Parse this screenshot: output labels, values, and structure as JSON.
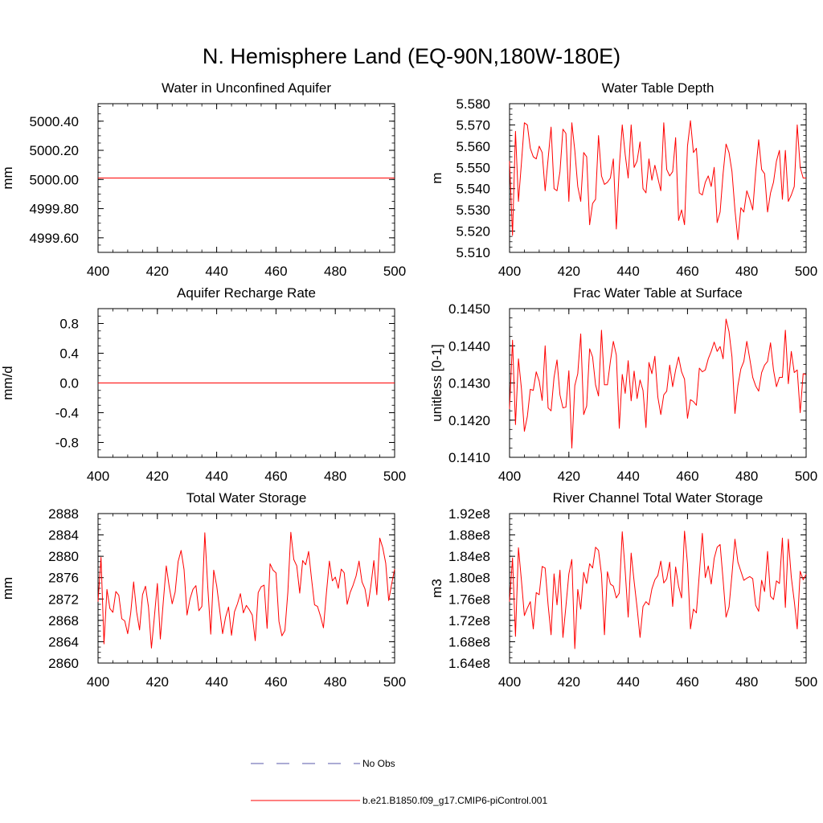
{
  "figure_title": "N. Hemisphere Land (EQ-90N,180W-180E)",
  "legend": {
    "entries": [
      {
        "label": "No Obs",
        "color": "#5a5aa8",
        "style": "dashed"
      },
      {
        "label": "b.e21.B1850.f09_g17.CMIP6-piControl.001",
        "color": "#ff0000",
        "style": "solid"
      }
    ]
  },
  "chart_data": [
    {
      "type": "line",
      "title": "Water in Unconfined Aquifer",
      "xlabel": "",
      "ylabel": "mm",
      "xlim": [
        400,
        500
      ],
      "ylim": [
        4999.5,
        5000.52
      ],
      "xticks": [
        400,
        420,
        440,
        460,
        480,
        500
      ],
      "yticks": [
        4999.6,
        4999.8,
        5000.0,
        5000.2,
        5000.4
      ],
      "ytick_decimals": 2,
      "series": [
        {
          "name": "b.e21.B1850.f09_g17.CMIP6-piControl.001",
          "color": "#ff0000",
          "x_start": 400,
          "values": [
            5000.01,
            5000.01
          ]
        }
      ]
    },
    {
      "type": "line",
      "title": "Water Table Depth",
      "xlabel": "",
      "ylabel": "m",
      "xlim": [
        400,
        500
      ],
      "ylim": [
        5.51,
        5.58
      ],
      "xticks": [
        400,
        420,
        440,
        460,
        480,
        500
      ],
      "yticks": [
        5.51,
        5.52,
        5.53,
        5.54,
        5.55,
        5.56,
        5.57,
        5.58
      ],
      "ytick_decimals": 3,
      "series": [
        {
          "name": "b.e21.B1850.f09_g17.CMIP6-piControl.001",
          "color": "#ff0000",
          "x_start": 400,
          "values": [
            5.553,
            5.518,
            5.567,
            5.534,
            5.552,
            5.571,
            5.57,
            5.559,
            5.555,
            5.554,
            5.56,
            5.557,
            5.539,
            5.554,
            5.569,
            5.54,
            5.539,
            5.548,
            5.568,
            5.566,
            5.534,
            5.571,
            5.558,
            5.541,
            5.534,
            5.557,
            5.555,
            5.523,
            5.533,
            5.535,
            5.565,
            5.546,
            5.542,
            5.543,
            5.545,
            5.554,
            5.521,
            5.55,
            5.57,
            5.556,
            5.545,
            5.57,
            5.55,
            5.553,
            5.562,
            5.54,
            5.538,
            5.554,
            5.544,
            5.551,
            5.545,
            5.539,
            5.571,
            5.549,
            5.546,
            5.548,
            5.564,
            5.525,
            5.53,
            5.523,
            5.56,
            5.572,
            5.557,
            5.559,
            5.538,
            5.537,
            5.543,
            5.546,
            5.541,
            5.55,
            5.524,
            5.529,
            5.547,
            5.561,
            5.557,
            5.548,
            5.53,
            5.516,
            5.531,
            5.529,
            5.539,
            5.535,
            5.53,
            5.548,
            5.563,
            5.549,
            5.547,
            5.529,
            5.538,
            5.543,
            5.553,
            5.558,
            5.535,
            5.558,
            5.534,
            5.537,
            5.541,
            5.57,
            5.55,
            5.545,
            5.545
          ]
        }
      ]
    },
    {
      "type": "line",
      "title": "Aquifer Recharge Rate",
      "xlabel": "",
      "ylabel": "mm/d",
      "xlim": [
        400,
        500
      ],
      "ylim": [
        -1.0,
        1.0
      ],
      "xticks": [
        400,
        420,
        440,
        460,
        480,
        500
      ],
      "yticks": [
        -0.8,
        -0.4,
        0.0,
        0.4,
        0.8
      ],
      "ytick_decimals": 1,
      "series": [
        {
          "name": "b.e21.B1850.f09_g17.CMIP6-piControl.001",
          "color": "#ff0000",
          "x_start": 400,
          "values": [
            0.0,
            0.0
          ]
        }
      ]
    },
    {
      "type": "line",
      "title": "Frac Water Table at Surface",
      "xlabel": "",
      "ylabel": "unitless [0-1]",
      "xlim": [
        400,
        500
      ],
      "ylim": [
        0.141,
        0.145
      ],
      "xticks": [
        400,
        420,
        440,
        460,
        480,
        500
      ],
      "yticks": [
        0.141,
        0.142,
        0.143,
        0.144,
        0.145
      ],
      "ytick_decimals": 4,
      "series": [
        {
          "name": "b.e21.B1850.f09_g17.CMIP6-piControl.001",
          "color": "#ff0000",
          "x_start": 400,
          "values": [
            0.1423,
            0.14415,
            0.14188,
            0.14365,
            0.14285,
            0.1417,
            0.1421,
            0.14283,
            0.1428,
            0.1433,
            0.14305,
            0.14253,
            0.144,
            0.14233,
            0.14225,
            0.14315,
            0.14362,
            0.14268,
            0.14233,
            0.14235,
            0.14333,
            0.14125,
            0.14293,
            0.14325,
            0.14432,
            0.14215,
            0.14238,
            0.14392,
            0.1437,
            0.14295,
            0.14265,
            0.14442,
            0.14295,
            0.14295,
            0.14358,
            0.14412,
            0.14375,
            0.14178,
            0.14323,
            0.14272,
            0.1436,
            0.14252,
            0.14332,
            0.14258,
            0.14308,
            0.1428,
            0.1418,
            0.14355,
            0.14325,
            0.14372,
            0.14262,
            0.14215,
            0.14268,
            0.14278,
            0.14348,
            0.1429,
            0.14335,
            0.1437,
            0.1433,
            0.1431,
            0.14205,
            0.14255,
            0.1425,
            0.1424,
            0.1434,
            0.1433,
            0.14335,
            0.14365,
            0.14385,
            0.1441,
            0.14385,
            0.14398,
            0.14365,
            0.14472,
            0.14438,
            0.1437,
            0.14218,
            0.14293,
            0.14338,
            0.14358,
            0.14412,
            0.14365,
            0.14315,
            0.14292,
            0.14278,
            0.14328,
            0.14348,
            0.14358,
            0.14408,
            0.14335,
            0.1429,
            0.14315,
            0.14315,
            0.14442,
            0.14298,
            0.14385,
            0.14328,
            0.14335,
            0.1422,
            0.14325,
            0.14322
          ]
        }
      ]
    },
    {
      "type": "line",
      "title": "Total Water Storage",
      "xlabel": "",
      "ylabel": "mm",
      "xlim": [
        400,
        500
      ],
      "ylim": [
        2860,
        2888
      ],
      "xticks": [
        400,
        420,
        440,
        460,
        480,
        500
      ],
      "yticks": [
        2860,
        2864,
        2868,
        2872,
        2876,
        2880,
        2884,
        2888
      ],
      "ytick_decimals": 0,
      "series": [
        {
          "name": "b.e21.B1850.f09_g17.CMIP6-piControl.001",
          "color": "#ff0000",
          "x_start": 400,
          "values": [
            2871.5,
            2879.8,
            2863.6,
            2873.8,
            2870.2,
            2869.5,
            2873.4,
            2872.7,
            2868.3,
            2867.9,
            2865.5,
            2869.3,
            2875.2,
            2869.6,
            2866.2,
            2872.8,
            2874.4,
            2870.5,
            2862.8,
            2868.7,
            2874.9,
            2864.5,
            2871.5,
            2878.2,
            2874.3,
            2871.1,
            2873.3,
            2879.0,
            2881.1,
            2877.5,
            2869.0,
            2872.0,
            2873.8,
            2874.5,
            2869.8,
            2870.6,
            2884.4,
            2874.2,
            2865.4,
            2877.4,
            2874.5,
            2870.0,
            2865.5,
            2868.6,
            2870.5,
            2865.2,
            2869.6,
            2871.1,
            2873.0,
            2869.4,
            2870.8,
            2870.0,
            2869.0,
            2864.2,
            2873.2,
            2874.3,
            2874.6,
            2866.5,
            2878.6,
            2877.4,
            2876.9,
            2867.8,
            2865.1,
            2866.1,
            2873.3,
            2884.5,
            2879.4,
            2878.2,
            2873.1,
            2879.2,
            2878.4,
            2880.9,
            2875.7,
            2870.9,
            2870.6,
            2868.8,
            2866.6,
            2873.1,
            2879.1,
            2875.4,
            2876.1,
            2874.0,
            2877.6,
            2876.9,
            2871.0,
            2873.2,
            2874.6,
            2876.3,
            2879.1,
            2875.2,
            2873.9,
            2870.6,
            2874.5,
            2879.2,
            2872.8,
            2883.4,
            2881.6,
            2878.7,
            2871.7,
            2874.8,
            2877.6
          ]
        }
      ]
    },
    {
      "type": "line",
      "title": "River Channel Total Water Storage",
      "xlabel": "",
      "ylabel": "m3",
      "xlim": [
        400,
        500
      ],
      "ylim": [
        164000000.0,
        192000000.0
      ],
      "xticks": [
        400,
        420,
        440,
        460,
        480,
        500
      ],
      "yticks": [
        164000000.0,
        168000000.0,
        172000000.0,
        176000000.0,
        180000000.0,
        184000000.0,
        188000000.0,
        192000000.0
      ],
      "ytick_format": "sci",
      "series": [
        {
          "name": "b.e21.B1850.f09_g17.CMIP6-piControl.001",
          "color": "#ff0000",
          "x_start": 400,
          "values": [
            175500000.0,
            183700000.0,
            169000000.0,
            185600000.0,
            179500000.0,
            172900000.0,
            174300000.0,
            175500000.0,
            170400000.0,
            177200000.0,
            176800000.0,
            182100000.0,
            181800000.0,
            174900000.0,
            169300000.0,
            180700000.0,
            174900000.0,
            181400000.0,
            168800000.0,
            174600000.0,
            180700000.0,
            183400000.0,
            166700000.0,
            177800000.0,
            174100000.0,
            181000000.0,
            178900000.0,
            182600000.0,
            181800000.0,
            185700000.0,
            185100000.0,
            180600000.0,
            169300000.0,
            181100000.0,
            178800000.0,
            178400000.0,
            176200000.0,
            177100000.0,
            188600000.0,
            181200000.0,
            172600000.0,
            184600000.0,
            179300000.0,
            174400000.0,
            168800000.0,
            174600000.0,
            175500000.0,
            174900000.0,
            177900000.0,
            179600000.0,
            180400000.0,
            183100000.0,
            179000000.0,
            179800000.0,
            182900000.0,
            174600000.0,
            182000000.0,
            178400000.0,
            176200000.0,
            188700000.0,
            182600000.0,
            170400000.0,
            174100000.0,
            173400000.0,
            180800000.0,
            188300000.0,
            180000000.0,
            182200000.0,
            178800000.0,
            183600000.0,
            185700000.0,
            186200000.0,
            179600000.0,
            172600000.0,
            174500000.0,
            180600000.0,
            187200000.0,
            182900000.0,
            181200000.0,
            179500000.0,
            179900000.0,
            180200000.0,
            179800000.0,
            174800000.0,
            173700000.0,
            179500000.0,
            177400000.0,
            184900000.0,
            176500000.0,
            175900000.0,
            179400000.0,
            178900000.0,
            187400000.0,
            174400000.0,
            187200000.0,
            180100000.0,
            175600000.0,
            170400000.0,
            181200000.0,
            179600000.0,
            180600000.0
          ]
        }
      ]
    }
  ]
}
